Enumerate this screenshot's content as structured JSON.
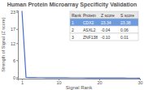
{
  "chart_data": {
    "type": "line",
    "title": "Human Protein Microarray Specificity Validation",
    "x_label": "Signal Rank",
    "y_label": "Strength of Signal (Z score)",
    "series": [
      {
        "name": "Z score",
        "color": "#4a6fd0",
        "x": [
          1,
          2,
          3,
          4,
          5,
          6,
          7,
          8,
          9,
          10,
          11,
          12,
          13,
          14,
          15,
          16,
          17,
          18,
          19,
          20,
          21,
          22,
          23,
          24,
          25,
          26,
          27,
          28,
          29,
          30
        ],
        "values": [
          23.34,
          -0.04,
          -0.1,
          -0.12,
          -0.14,
          -0.15,
          -0.16,
          -0.17,
          -0.18,
          -0.19,
          -0.2,
          -0.2,
          -0.21,
          -0.21,
          -0.22,
          -0.22,
          -0.23,
          -0.23,
          -0.24,
          -0.24,
          -0.25,
          -0.25,
          -0.26,
          -0.26,
          -0.27,
          -0.27,
          -0.28,
          -0.28,
          -0.29,
          -0.3
        ]
      }
    ],
    "xlim": [
      0,
      30
    ],
    "xticks": [
      1,
      10,
      20,
      30
    ],
    "ylim": [
      -0.5,
      23.5
    ],
    "yticks": [
      0,
      6,
      12,
      17,
      23
    ],
    "grid": false
  },
  "table": {
    "columns": [
      "Rank",
      "Protein",
      "Z score",
      "S score"
    ],
    "rows": [
      [
        "1",
        "CDX2",
        "23.34",
        "23.38"
      ],
      [
        "2",
        "ASXL2",
        "-0.04",
        "0.06"
      ],
      [
        "3",
        "ZNF138",
        "-0.10",
        "0.01"
      ]
    ]
  }
}
